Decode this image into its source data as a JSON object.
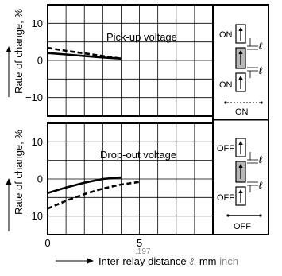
{
  "chart_data": [
    {
      "type": "line",
      "annotation": "Pick-up voltage",
      "ylabel": "Rate of change, %",
      "xlim": [
        0,
        9
      ],
      "ylim": [
        -15,
        15
      ],
      "yticks": [
        10,
        0,
        -10
      ],
      "grid": true,
      "series": [
        {
          "style": "solid",
          "x": [
            0,
            1,
            2,
            3,
            4
          ],
          "y": [
            2.0,
            1.6,
            1.2,
            0.8,
            0.5
          ]
        },
        {
          "style": "dashed",
          "x": [
            0,
            1,
            2,
            3,
            4
          ],
          "y": [
            3.4,
            2.6,
            1.9,
            1.2,
            0.5
          ]
        }
      ]
    },
    {
      "type": "line",
      "annotation": "Drop-out voltage",
      "ylabel": "Rate of change, %",
      "xlabel": "Inter-relay distance",
      "xlabel_symbol": "ℓ",
      "xlabel_unit": ", mm",
      "xlabel_alt_unit": "inch",
      "xlim": [
        0,
        9
      ],
      "ylim": [
        -15,
        15
      ],
      "xticks": [
        "0",
        "5"
      ],
      "xtick_alt": ".197",
      "yticks": [
        10,
        0,
        -10
      ],
      "grid": true,
      "series": [
        {
          "style": "solid",
          "x": [
            0,
            1,
            2,
            3,
            4
          ],
          "y": [
            -3.8,
            -2.3,
            -1.0,
            0.0,
            0.4
          ]
        },
        {
          "style": "dashed",
          "x": [
            0,
            1,
            2,
            3,
            4,
            5
          ],
          "y": [
            -8.0,
            -5.9,
            -4.1,
            -2.6,
            -1.5,
            -0.8
          ]
        }
      ]
    }
  ],
  "legend": {
    "top": {
      "upper_label": "ON",
      "lower_label": "ON",
      "footer": "ON",
      "symbol": "ℓ"
    },
    "bottom": {
      "upper_label": "OFF",
      "lower_label": "OFF",
      "footer": "OFF",
      "symbol": "ℓ"
    }
  },
  "colors": {
    "line": "#000000",
    "grid": "#000000",
    "relay_shaded": "#b8b8b8",
    "alt_unit": "#8a8a8a"
  }
}
